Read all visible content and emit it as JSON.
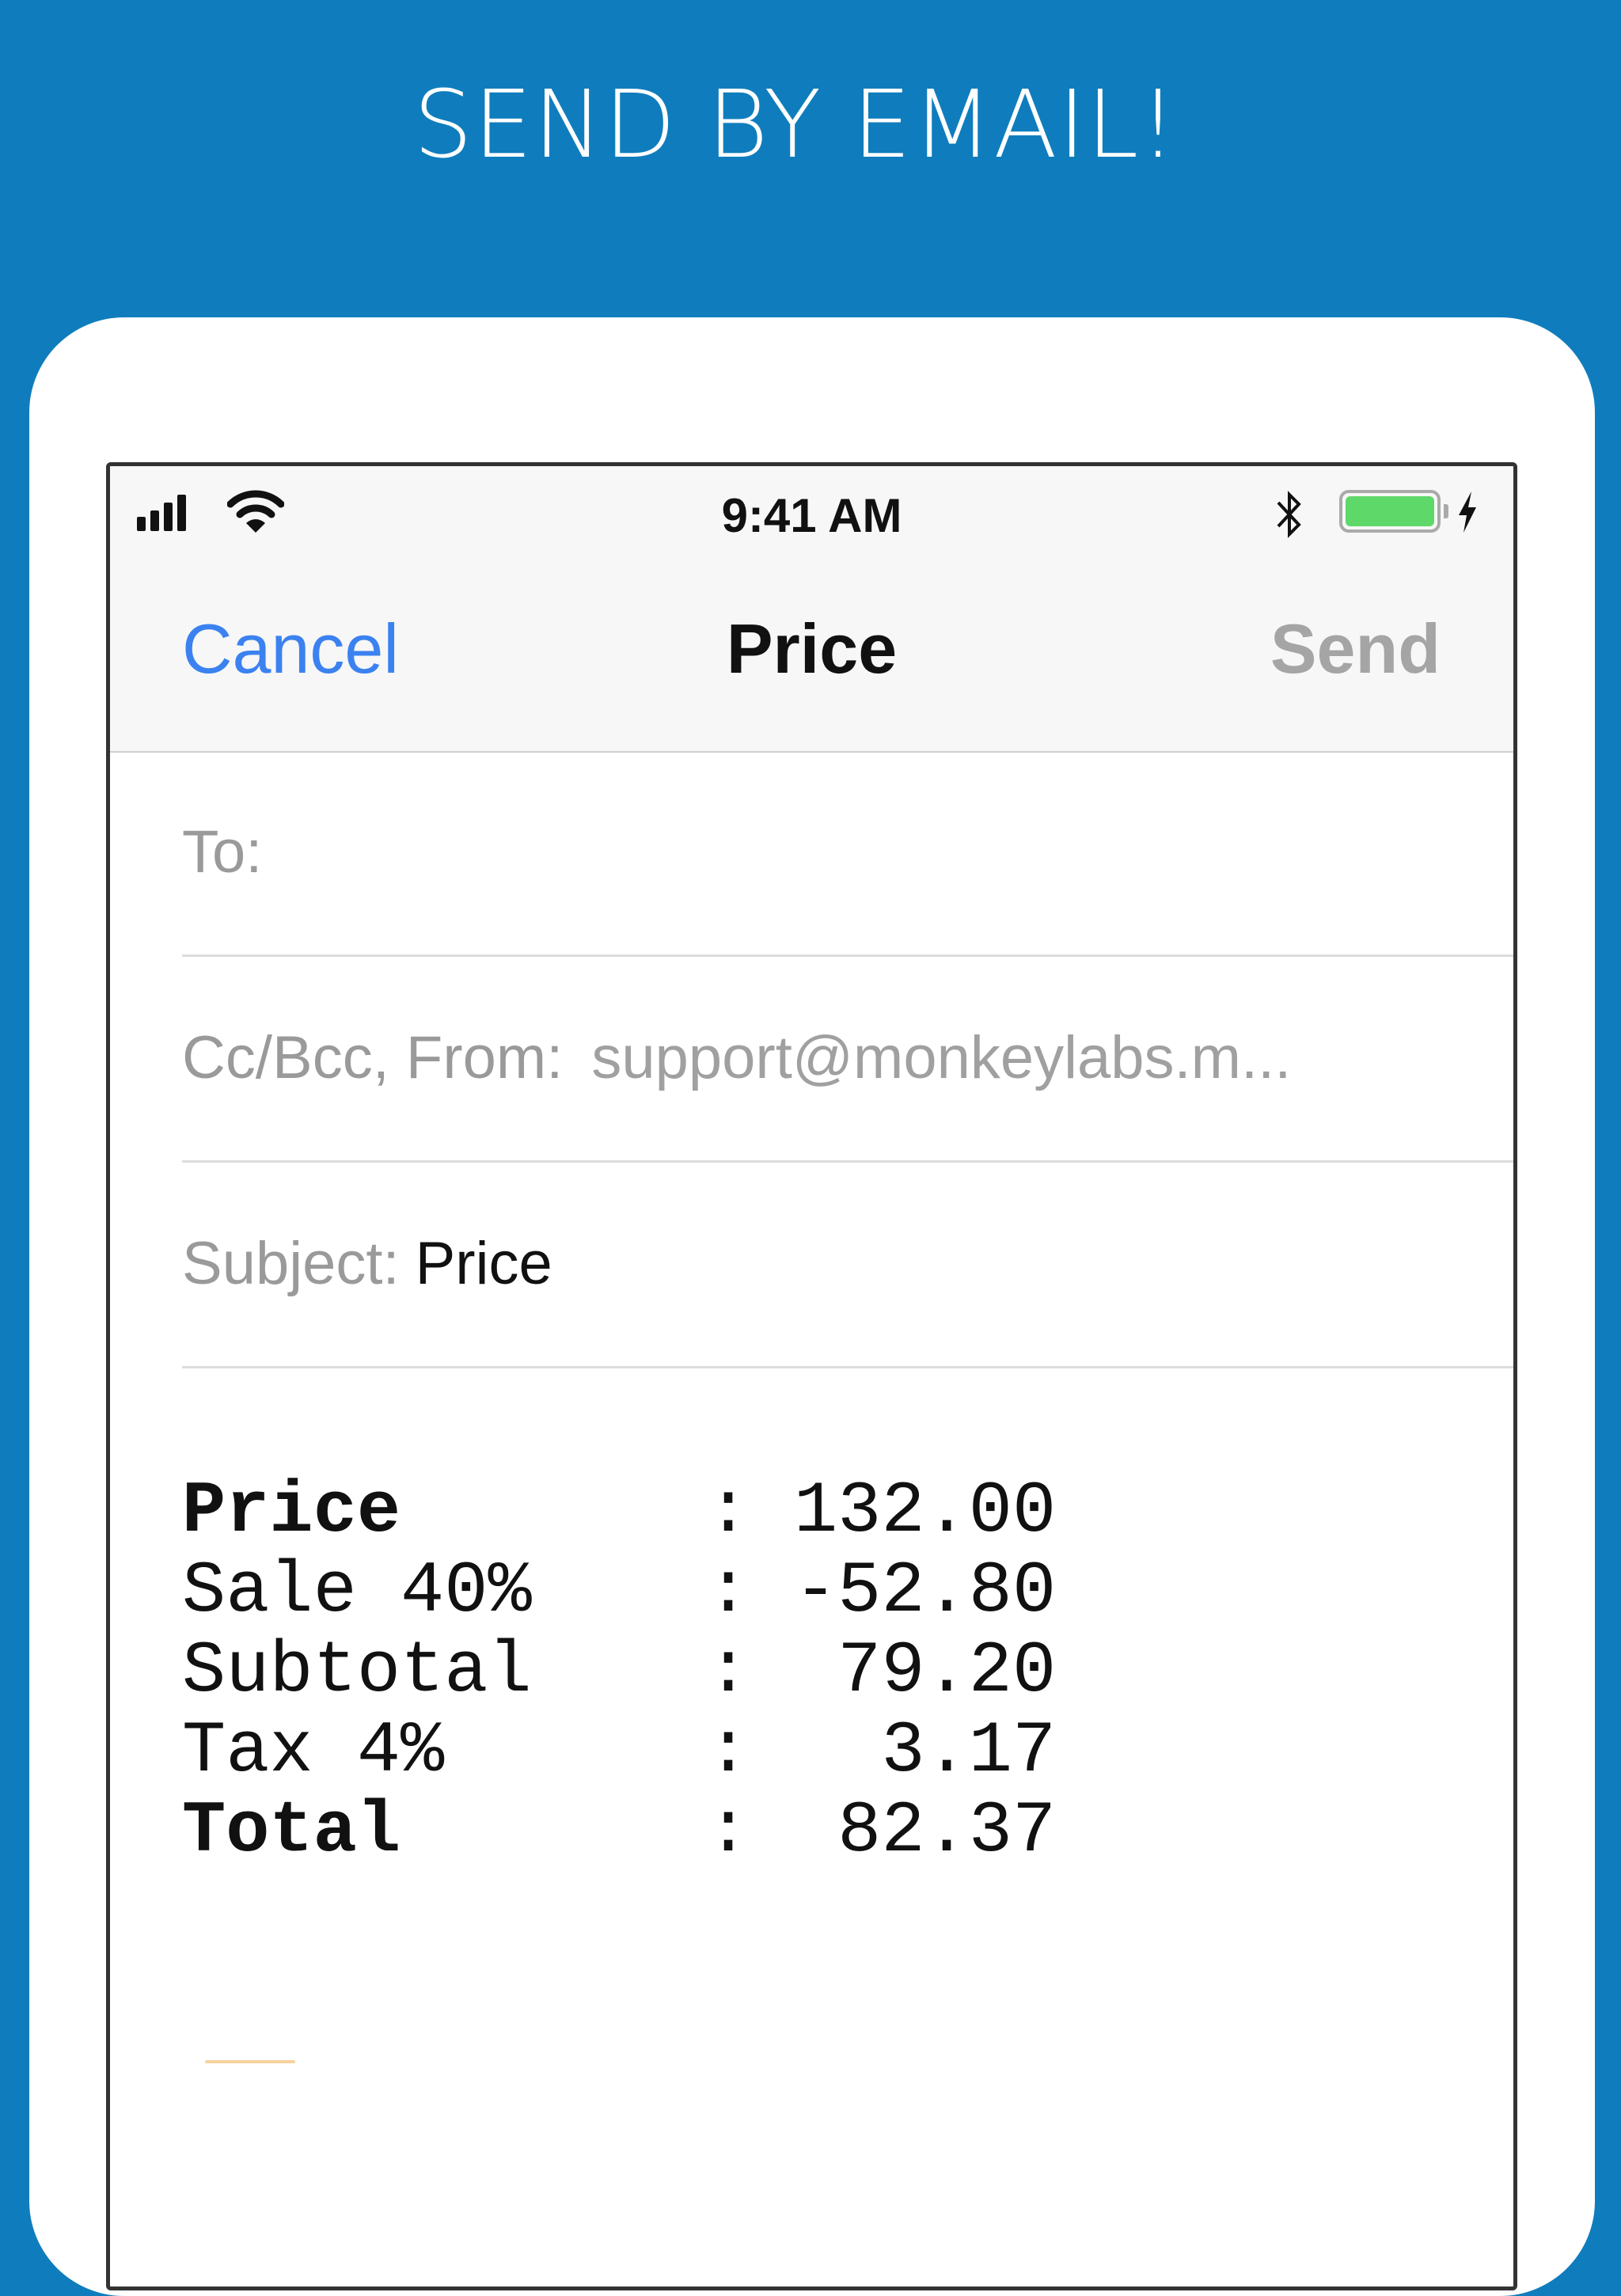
{
  "headline": "SEND BY EMAIL!",
  "status_bar": {
    "time": "9:41 AM",
    "battery_level": 1.0,
    "battery_color": "#5fd86a",
    "icons": [
      "signal-icon",
      "wifi-icon",
      "bluetooth-icon",
      "battery-icon",
      "charging-icon"
    ]
  },
  "nav": {
    "cancel": "Cancel",
    "title": "Price",
    "send": "Send"
  },
  "fields": {
    "to_label": "To:",
    "to_value": "",
    "cc_label": "Cc/Bcc, From:",
    "cc_value": "support@monkeylabs.m...",
    "subject_label": "Subject:",
    "subject_value": "Price"
  },
  "body_lines": [
    {
      "label": "Price",
      "value": "132.00",
      "bold": true
    },
    {
      "label": "Sale 40%",
      "value": "-52.80",
      "bold": false
    },
    {
      "label": "Subtotal",
      "value": "79.20",
      "bold": false
    },
    {
      "label": "Tax 4%",
      "value": "3.17",
      "bold": false
    },
    {
      "label": "Total",
      "value": "82.37",
      "bold": true
    }
  ],
  "colors": {
    "background": "#0f7dbd",
    "accent": "#3b82f0",
    "disabled": "#a5a5a5"
  }
}
